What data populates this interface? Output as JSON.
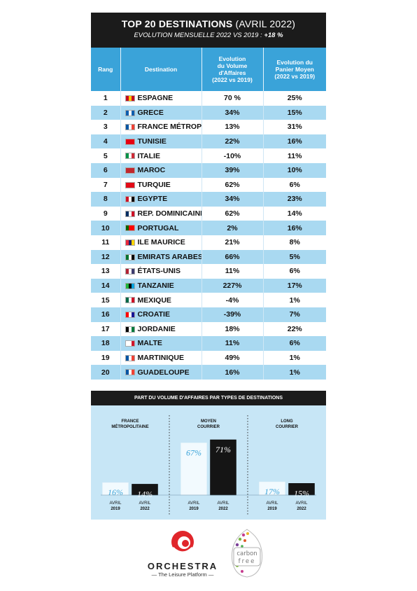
{
  "header": {
    "title_bold": "TOP 20 DESTINATIONS",
    "title_light": " (AVRIL 2022)",
    "subtitle_lead": "EVOLUTION MENSUELLE 2022 VS 2019 : ",
    "subtitle_value": "+18 %"
  },
  "table": {
    "columns": {
      "rang": "Rang",
      "destination": "Destination",
      "volume": [
        "Evolution",
        "du Volume",
        "d'Affaires",
        "(2022 vs 2019)"
      ],
      "panier": [
        "Evolution du",
        "Panier Moyen",
        "(2022 vs 2019)"
      ]
    },
    "rows": [
      {
        "rank": "1",
        "name": "ESPAGNE",
        "volume": "70 %",
        "panier": "25%",
        "flag": [
          "#c60b1e",
          "#ffc400",
          "#c60b1e"
        ]
      },
      {
        "rank": "2",
        "name": "GRECE",
        "volume": "34%",
        "panier": "15%",
        "flag": [
          "#0d5eaf",
          "#ffffff",
          "#0d5eaf"
        ]
      },
      {
        "rank": "3",
        "name": "FRANCE MÉTROPOLITAINE",
        "volume": "13%",
        "panier": "31%",
        "flag": [
          "#0055a4",
          "#ffffff",
          "#ef4135"
        ]
      },
      {
        "rank": "4",
        "name": "TUNISIE",
        "volume": "22%",
        "panier": "16%",
        "flag": [
          "#e70013",
          "#e70013",
          "#e70013"
        ]
      },
      {
        "rank": "5",
        "name": "ITALIE",
        "volume": "-10%",
        "panier": "11%",
        "flag": [
          "#009246",
          "#ffffff",
          "#ce2b37"
        ]
      },
      {
        "rank": "6",
        "name": "MAROC",
        "volume": "39%",
        "panier": "10%",
        "flag": [
          "#c1272d",
          "#c1272d",
          "#c1272d"
        ]
      },
      {
        "rank": "7",
        "name": "TURQUIE",
        "volume": "62%",
        "panier": "6%",
        "flag": [
          "#e30a17",
          "#e30a17",
          "#e30a17"
        ]
      },
      {
        "rank": "8",
        "name": "EGYPTE",
        "volume": "34%",
        "panier": "23%",
        "flag": [
          "#ce1126",
          "#ffffff",
          "#000000"
        ]
      },
      {
        "rank": "9",
        "name": "REP. DOMINICAINE",
        "volume": "62%",
        "panier": "14%",
        "flag": [
          "#002d62",
          "#ffffff",
          "#ce1126"
        ]
      },
      {
        "rank": "10",
        "name": "PORTUGAL",
        "volume": "2%",
        "panier": "16%",
        "flag": [
          "#006600",
          "#ff0000",
          "#ff0000"
        ]
      },
      {
        "rank": "11",
        "name": "ILE MAURICE",
        "volume": "21%",
        "panier": "8%",
        "flag": [
          "#ea2839",
          "#1a206d",
          "#ffd500"
        ]
      },
      {
        "rank": "12",
        "name": "EMIRATS ARABES UNIS",
        "volume": "66%",
        "panier": "5%",
        "flag": [
          "#00732f",
          "#ffffff",
          "#000000"
        ]
      },
      {
        "rank": "13",
        "name": "ÉTATS-UNIS",
        "volume": "11%",
        "panier": "6%",
        "flag": [
          "#b22234",
          "#ffffff",
          "#3c3b6e"
        ]
      },
      {
        "rank": "14",
        "name": "TANZANIE",
        "volume": "227%",
        "panier": "17%",
        "flag": [
          "#1eb53a",
          "#000000",
          "#00a3dd"
        ]
      },
      {
        "rank": "15",
        "name": "MEXIQUE",
        "volume": "-4%",
        "panier": "1%",
        "flag": [
          "#006847",
          "#ffffff",
          "#ce1126"
        ]
      },
      {
        "rank": "16",
        "name": "CROATIE",
        "volume": "-39%",
        "panier": "7%",
        "flag": [
          "#ff0000",
          "#ffffff",
          "#171796"
        ]
      },
      {
        "rank": "17",
        "name": "JORDANIE",
        "volume": "18%",
        "panier": "22%",
        "flag": [
          "#000000",
          "#ffffff",
          "#007a3d"
        ]
      },
      {
        "rank": "18",
        "name": "MALTE",
        "volume": "11%",
        "panier": "6%",
        "flag": [
          "#ffffff",
          "#ffffff",
          "#cf142b"
        ]
      },
      {
        "rank": "19",
        "name": "MARTINIQUE",
        "volume": "49%",
        "panier": "1%",
        "flag": [
          "#0055a4",
          "#ffffff",
          "#ef4135"
        ]
      },
      {
        "rank": "20",
        "name": "GUADELOUPE",
        "volume": "16%",
        "panier": "1%",
        "flag": [
          "#0055a4",
          "#ffffff",
          "#ef4135"
        ]
      }
    ]
  },
  "chart_data": {
    "type": "bar",
    "title": "PART DU VOLUME D'AFFAIRES PAR TYPES DE DESTINATIONS",
    "groups": [
      {
        "label": [
          "FRANCE",
          "MÉTROPOLITAINE"
        ],
        "values": [
          16,
          14
        ],
        "value_labels": [
          "16%",
          "14%"
        ]
      },
      {
        "label": [
          "MOYEN",
          "COURRIER"
        ],
        "values": [
          67,
          71
        ],
        "value_labels": [
          "67%",
          "71%"
        ]
      },
      {
        "label": [
          "LONG",
          "COURRIER"
        ],
        "values": [
          17,
          15
        ],
        "value_labels": [
          "17%",
          "15%"
        ]
      }
    ],
    "series": [
      {
        "period": [
          "AVRIL",
          "2019"
        ],
        "color": "#f2fafe",
        "label_color": "#3aa3d9"
      },
      {
        "period": [
          "AVRIL",
          "2022"
        ],
        "color": "#151515",
        "label_color": "#ffffff"
      }
    ],
    "ylim": [
      0,
      71
    ],
    "grid": false,
    "separators": "dotted"
  },
  "footer": {
    "orchestra_name": "ORCHESTRA",
    "orchestra_tagline": "— The Leisure Platform —",
    "carbon_label": [
      "carbon",
      "free"
    ]
  }
}
